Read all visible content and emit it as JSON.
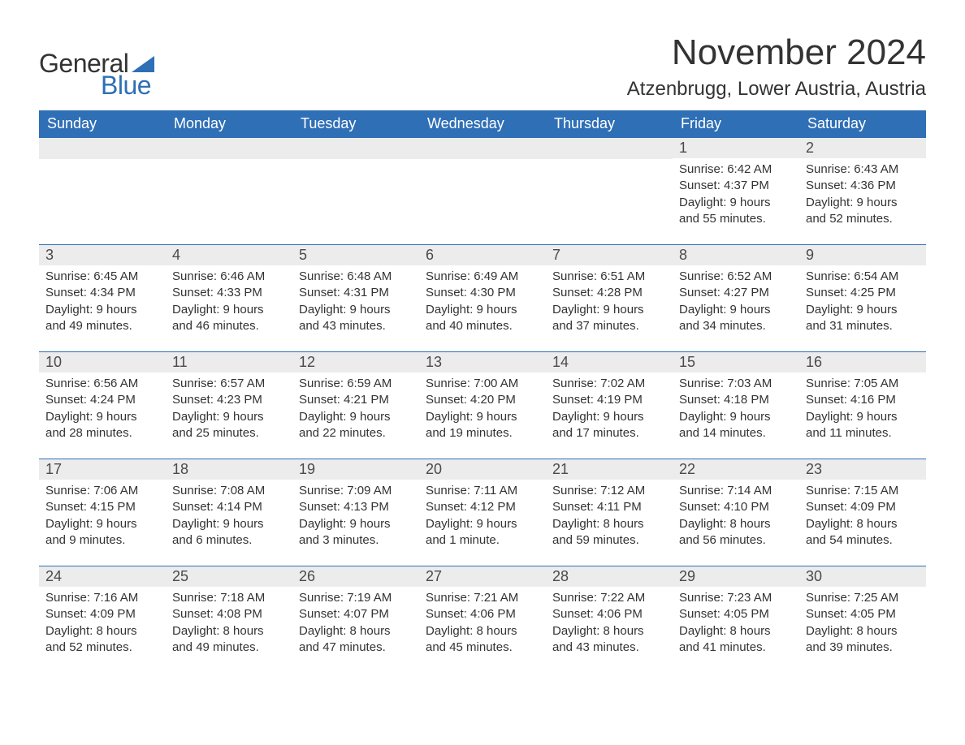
{
  "logo": {
    "text_general": "General",
    "text_blue": "Blue",
    "sail_color": "#2f6fb6"
  },
  "title": "November 2024",
  "location": "Atzenbrugg, Lower Austria, Austria",
  "colors": {
    "header_bg": "#2f6fb6",
    "header_fg": "#ffffff",
    "daynum_bg": "#ececec",
    "daynum_fg": "#4a4a4a",
    "week_rule": "#2f6fb6",
    "page_bg": "#ffffff",
    "text": "#333333"
  },
  "typography": {
    "title_fontsize": 44,
    "location_fontsize": 24,
    "dayheader_fontsize": 18,
    "daynum_fontsize": 18,
    "detail_fontsize": 15,
    "font_family": "Arial"
  },
  "columns": [
    "Sunday",
    "Monday",
    "Tuesday",
    "Wednesday",
    "Thursday",
    "Friday",
    "Saturday"
  ],
  "weeks": [
    [
      {
        "blank": true
      },
      {
        "blank": true
      },
      {
        "blank": true
      },
      {
        "blank": true
      },
      {
        "blank": true
      },
      {
        "day": "1",
        "sunrise": "Sunrise: 6:42 AM",
        "sunset": "Sunset: 4:37 PM",
        "daylight1": "Daylight: 9 hours",
        "daylight2": "and 55 minutes."
      },
      {
        "day": "2",
        "sunrise": "Sunrise: 6:43 AM",
        "sunset": "Sunset: 4:36 PM",
        "daylight1": "Daylight: 9 hours",
        "daylight2": "and 52 minutes."
      }
    ],
    [
      {
        "day": "3",
        "sunrise": "Sunrise: 6:45 AM",
        "sunset": "Sunset: 4:34 PM",
        "daylight1": "Daylight: 9 hours",
        "daylight2": "and 49 minutes."
      },
      {
        "day": "4",
        "sunrise": "Sunrise: 6:46 AM",
        "sunset": "Sunset: 4:33 PM",
        "daylight1": "Daylight: 9 hours",
        "daylight2": "and 46 minutes."
      },
      {
        "day": "5",
        "sunrise": "Sunrise: 6:48 AM",
        "sunset": "Sunset: 4:31 PM",
        "daylight1": "Daylight: 9 hours",
        "daylight2": "and 43 minutes."
      },
      {
        "day": "6",
        "sunrise": "Sunrise: 6:49 AM",
        "sunset": "Sunset: 4:30 PM",
        "daylight1": "Daylight: 9 hours",
        "daylight2": "and 40 minutes."
      },
      {
        "day": "7",
        "sunrise": "Sunrise: 6:51 AM",
        "sunset": "Sunset: 4:28 PM",
        "daylight1": "Daylight: 9 hours",
        "daylight2": "and 37 minutes."
      },
      {
        "day": "8",
        "sunrise": "Sunrise: 6:52 AM",
        "sunset": "Sunset: 4:27 PM",
        "daylight1": "Daylight: 9 hours",
        "daylight2": "and 34 minutes."
      },
      {
        "day": "9",
        "sunrise": "Sunrise: 6:54 AM",
        "sunset": "Sunset: 4:25 PM",
        "daylight1": "Daylight: 9 hours",
        "daylight2": "and 31 minutes."
      }
    ],
    [
      {
        "day": "10",
        "sunrise": "Sunrise: 6:56 AM",
        "sunset": "Sunset: 4:24 PM",
        "daylight1": "Daylight: 9 hours",
        "daylight2": "and 28 minutes."
      },
      {
        "day": "11",
        "sunrise": "Sunrise: 6:57 AM",
        "sunset": "Sunset: 4:23 PM",
        "daylight1": "Daylight: 9 hours",
        "daylight2": "and 25 minutes."
      },
      {
        "day": "12",
        "sunrise": "Sunrise: 6:59 AM",
        "sunset": "Sunset: 4:21 PM",
        "daylight1": "Daylight: 9 hours",
        "daylight2": "and 22 minutes."
      },
      {
        "day": "13",
        "sunrise": "Sunrise: 7:00 AM",
        "sunset": "Sunset: 4:20 PM",
        "daylight1": "Daylight: 9 hours",
        "daylight2": "and 19 minutes."
      },
      {
        "day": "14",
        "sunrise": "Sunrise: 7:02 AM",
        "sunset": "Sunset: 4:19 PM",
        "daylight1": "Daylight: 9 hours",
        "daylight2": "and 17 minutes."
      },
      {
        "day": "15",
        "sunrise": "Sunrise: 7:03 AM",
        "sunset": "Sunset: 4:18 PM",
        "daylight1": "Daylight: 9 hours",
        "daylight2": "and 14 minutes."
      },
      {
        "day": "16",
        "sunrise": "Sunrise: 7:05 AM",
        "sunset": "Sunset: 4:16 PM",
        "daylight1": "Daylight: 9 hours",
        "daylight2": "and 11 minutes."
      }
    ],
    [
      {
        "day": "17",
        "sunrise": "Sunrise: 7:06 AM",
        "sunset": "Sunset: 4:15 PM",
        "daylight1": "Daylight: 9 hours",
        "daylight2": "and 9 minutes."
      },
      {
        "day": "18",
        "sunrise": "Sunrise: 7:08 AM",
        "sunset": "Sunset: 4:14 PM",
        "daylight1": "Daylight: 9 hours",
        "daylight2": "and 6 minutes."
      },
      {
        "day": "19",
        "sunrise": "Sunrise: 7:09 AM",
        "sunset": "Sunset: 4:13 PM",
        "daylight1": "Daylight: 9 hours",
        "daylight2": "and 3 minutes."
      },
      {
        "day": "20",
        "sunrise": "Sunrise: 7:11 AM",
        "sunset": "Sunset: 4:12 PM",
        "daylight1": "Daylight: 9 hours",
        "daylight2": "and 1 minute."
      },
      {
        "day": "21",
        "sunrise": "Sunrise: 7:12 AM",
        "sunset": "Sunset: 4:11 PM",
        "daylight1": "Daylight: 8 hours",
        "daylight2": "and 59 minutes."
      },
      {
        "day": "22",
        "sunrise": "Sunrise: 7:14 AM",
        "sunset": "Sunset: 4:10 PM",
        "daylight1": "Daylight: 8 hours",
        "daylight2": "and 56 minutes."
      },
      {
        "day": "23",
        "sunrise": "Sunrise: 7:15 AM",
        "sunset": "Sunset: 4:09 PM",
        "daylight1": "Daylight: 8 hours",
        "daylight2": "and 54 minutes."
      }
    ],
    [
      {
        "day": "24",
        "sunrise": "Sunrise: 7:16 AM",
        "sunset": "Sunset: 4:09 PM",
        "daylight1": "Daylight: 8 hours",
        "daylight2": "and 52 minutes."
      },
      {
        "day": "25",
        "sunrise": "Sunrise: 7:18 AM",
        "sunset": "Sunset: 4:08 PM",
        "daylight1": "Daylight: 8 hours",
        "daylight2": "and 49 minutes."
      },
      {
        "day": "26",
        "sunrise": "Sunrise: 7:19 AM",
        "sunset": "Sunset: 4:07 PM",
        "daylight1": "Daylight: 8 hours",
        "daylight2": "and 47 minutes."
      },
      {
        "day": "27",
        "sunrise": "Sunrise: 7:21 AM",
        "sunset": "Sunset: 4:06 PM",
        "daylight1": "Daylight: 8 hours",
        "daylight2": "and 45 minutes."
      },
      {
        "day": "28",
        "sunrise": "Sunrise: 7:22 AM",
        "sunset": "Sunset: 4:06 PM",
        "daylight1": "Daylight: 8 hours",
        "daylight2": "and 43 minutes."
      },
      {
        "day": "29",
        "sunrise": "Sunrise: 7:23 AM",
        "sunset": "Sunset: 4:05 PM",
        "daylight1": "Daylight: 8 hours",
        "daylight2": "and 41 minutes."
      },
      {
        "day": "30",
        "sunrise": "Sunrise: 7:25 AM",
        "sunset": "Sunset: 4:05 PM",
        "daylight1": "Daylight: 8 hours",
        "daylight2": "and 39 minutes."
      }
    ]
  ]
}
